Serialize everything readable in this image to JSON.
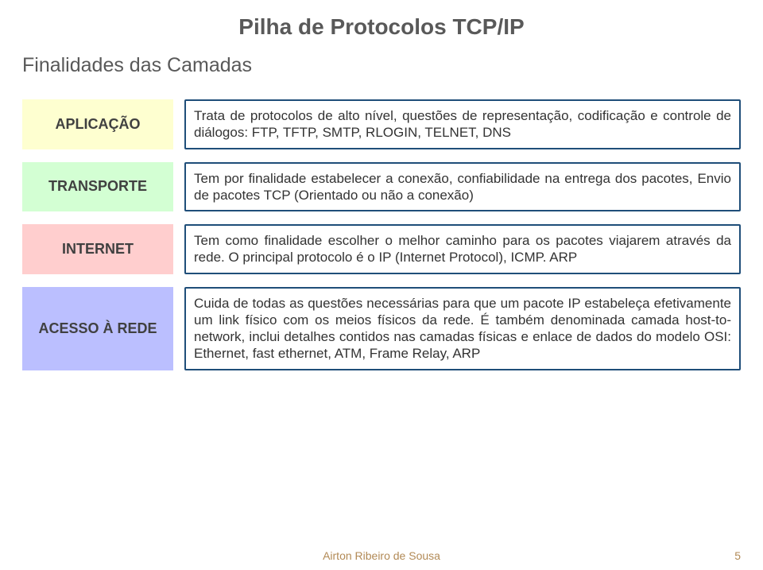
{
  "title": "Pilha de Protocolos TCP/IP",
  "subtitle": "Finalidades das Camadas",
  "layers": [
    {
      "name": "APLICAÇÃO",
      "label_bg": "#feffd0",
      "desc_bg": "#ffffff",
      "desc_border": "#1f4e79",
      "desc_border_width": 2,
      "description": "Trata de protocolos de alto nível, questões de representação, codificação e controle de diálogos: FTP, TFTP, SMTP, RLOGIN, TELNET, DNS"
    },
    {
      "name": "TRANSPORTE",
      "label_bg": "#d3ffd3",
      "desc_bg": "#ffffff",
      "desc_border": "#1f4e79",
      "desc_border_width": 2,
      "description": "Tem por finalidade estabelecer a conexão, confiabilidade na entrega dos pacotes, Envio de pacotes TCP (Orientado ou não a conexão)"
    },
    {
      "name": "INTERNET",
      "label_bg": "#ffcece",
      "desc_bg": "#ffffff",
      "desc_border": "#1f4e79",
      "desc_border_width": 2,
      "description": "Tem como finalidade escolher o melhor caminho para os pacotes viajarem através da rede. O principal protocolo é o IP (Internet Protocol), ICMP. ARP"
    },
    {
      "name": "ACESSO À REDE",
      "label_bg": "#bbbfff",
      "desc_bg": "#ffffff",
      "desc_border": "#1f4e79",
      "desc_border_width": 2,
      "description": "Cuida de todas as questões necessárias para que um pacote IP estabeleça efetivamente um link físico com os meios físicos da rede. É também denominada camada host-to-network, inclui detalhes contidos nas camadas físicas e enlace de dados do modelo OSI: Ethernet, fast ethernet, ATM, Frame Relay, ARP"
    }
  ],
  "footer": "Airton Ribeiro de Sousa",
  "page_number": "5"
}
